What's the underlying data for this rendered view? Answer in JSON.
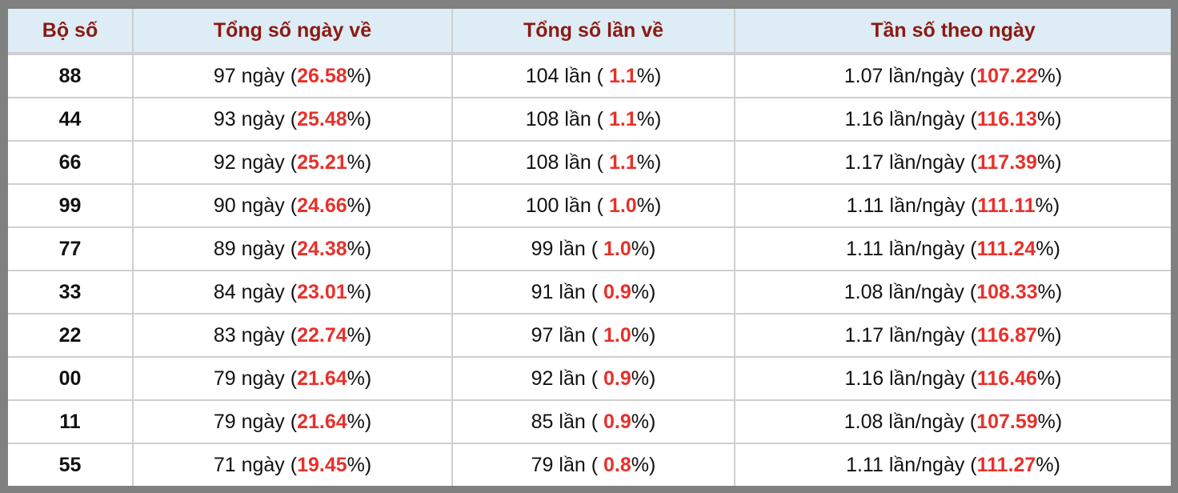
{
  "colors": {
    "header_bg": "#ddecf5",
    "header_text": "#8b1a13",
    "highlight": "#e8302a",
    "frame": "#808080"
  },
  "table": {
    "headers": [
      "Bộ số",
      "Tổng số ngày về",
      "Tổng số lần về",
      "Tần số theo ngày"
    ],
    "rows": [
      {
        "bo_so": "88",
        "ngay": "97 ngày (",
        "ngay_pct": "26.58",
        "lan": "104 lần ( ",
        "lan_pct": "1.1",
        "tan_so": "1.07 lần/ngày (",
        "tan_so_pct": "107.22"
      },
      {
        "bo_so": "44",
        "ngay": "93 ngày (",
        "ngay_pct": "25.48",
        "lan": "108 lần ( ",
        "lan_pct": "1.1",
        "tan_so": "1.16 lần/ngày (",
        "tan_so_pct": "116.13"
      },
      {
        "bo_so": "66",
        "ngay": "92 ngày (",
        "ngay_pct": "25.21",
        "lan": "108 lần ( ",
        "lan_pct": "1.1",
        "tan_so": "1.17 lần/ngày (",
        "tan_so_pct": "117.39"
      },
      {
        "bo_so": "99",
        "ngay": "90 ngày (",
        "ngay_pct": "24.66",
        "lan": "100 lần ( ",
        "lan_pct": "1.0",
        "tan_so": "1.11 lần/ngày (",
        "tan_so_pct": "111.11"
      },
      {
        "bo_so": "77",
        "ngay": "89 ngày (",
        "ngay_pct": "24.38",
        "lan": "99 lần ( ",
        "lan_pct": "1.0",
        "tan_so": "1.11 lần/ngày (",
        "tan_so_pct": "111.24"
      },
      {
        "bo_so": "33",
        "ngay": "84 ngày (",
        "ngay_pct": "23.01",
        "lan": "91 lần ( ",
        "lan_pct": "0.9",
        "tan_so": "1.08 lần/ngày (",
        "tan_so_pct": "108.33"
      },
      {
        "bo_so": "22",
        "ngay": "83 ngày (",
        "ngay_pct": "22.74",
        "lan": "97 lần ( ",
        "lan_pct": "1.0",
        "tan_so": "1.17 lần/ngày (",
        "tan_so_pct": "116.87"
      },
      {
        "bo_so": "00",
        "ngay": "79 ngày (",
        "ngay_pct": "21.64",
        "lan": "92 lần ( ",
        "lan_pct": "0.9",
        "tan_so": "1.16 lần/ngày (",
        "tan_so_pct": "116.46"
      },
      {
        "bo_so": "11",
        "ngay": "79 ngày (",
        "ngay_pct": "21.64",
        "lan": "85 lần ( ",
        "lan_pct": "0.9",
        "tan_so": "1.08 lần/ngày (",
        "tan_so_pct": "107.59"
      },
      {
        "bo_so": "55",
        "ngay": "71 ngày (",
        "ngay_pct": "19.45",
        "lan": "79 lần ( ",
        "lan_pct": "0.8",
        "tan_so": "1.11 lần/ngày (",
        "tan_so_pct": "111.27"
      }
    ],
    "pct_suffix": "%)"
  }
}
